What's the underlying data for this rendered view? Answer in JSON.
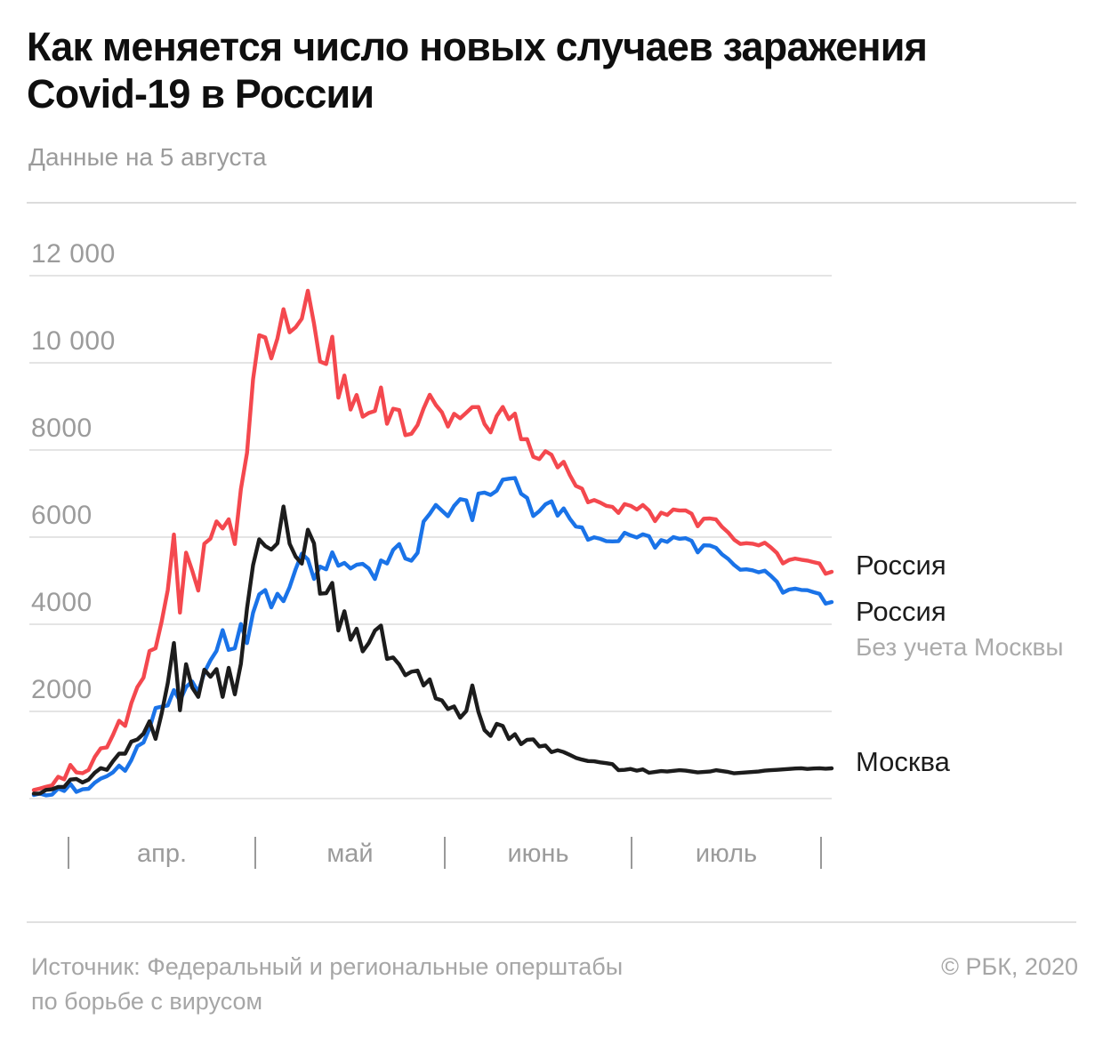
{
  "header": {
    "title_line1": "Как меняется число новых случаев заражения",
    "title_line2": "Covid-19 в России",
    "subtitle": "Данные на 5 августа"
  },
  "legend": {
    "russia": "Россия",
    "russia_ex_line1": "Россия",
    "russia_ex_line2": "Без учета Москвы",
    "moscow": "Москва"
  },
  "footer": {
    "source_line1": "Источник: Федеральный и региональные оперштабы",
    "source_line2": "по борьбе с вирусом",
    "copyright": "© РБК, 2020"
  },
  "colors": {
    "russia": "#F4484E",
    "russia_ex_moscow": "#1A73E8",
    "moscow": "#1C1C1C",
    "grid": "#DBDBDB",
    "axis_text": "#9B9B9B",
    "tick": "#999999",
    "title": "#0F0F0F",
    "subtitle_text": "#9B9B9B",
    "footer_text": "#A6A6A6",
    "divider": "#DCDCDC",
    "legend_sub": "#ABABAB"
  },
  "chart_data": {
    "type": "line",
    "title": "Как меняется число новых случаев заражения Covid-19 в России",
    "subtitle": "Данные на 5 августа",
    "xlabel": "",
    "ylabel": "",
    "ylim": [
      0,
      12000
    ],
    "grid": "horizontal",
    "legend_position": "right",
    "x_unit": "day",
    "x_tick_labels": [
      "апр.",
      "май",
      "июнь",
      "июль"
    ],
    "y_ticks": [
      {
        "value": 12000,
        "label": "12 000"
      },
      {
        "value": 10000,
        "label": "10 000"
      },
      {
        "value": 8000,
        "label": "8000"
      },
      {
        "value": 6000,
        "label": "6000"
      },
      {
        "value": 4000,
        "label": "4000"
      },
      {
        "value": 2000,
        "label": "2000"
      },
      {
        "value": 0,
        "label": ""
      }
    ],
    "series": [
      {
        "name": "Россия",
        "color_key": "russia",
        "values": [
          196,
          228,
          270,
          302,
          500,
          440,
          771,
          601,
          582,
          658,
          954,
          1154,
          1175,
          1459,
          1786,
          1667,
          2186,
          2558,
          2774,
          3388,
          3448,
          4070,
          4785,
          6060,
          4268,
          5642,
          5236,
          4774,
          5849,
          5966,
          6361,
          6198,
          6411,
          5841,
          7099,
          7933,
          9623,
          10633,
          10581,
          10102,
          10559,
          11231,
          10699,
          10817,
          11012,
          11656,
          10899,
          10028,
          9974,
          10598,
          9200,
          9709,
          8926,
          9263,
          8764,
          8849,
          8894,
          9434,
          8599,
          8946,
          8915,
          8338,
          8371,
          8572,
          8952,
          9268,
          9035,
          8863,
          8536,
          8831,
          8726,
          8855,
          8984,
          8985,
          8595,
          8404,
          8779,
          8987,
          8706,
          8835,
          8246,
          8248,
          7843,
          7790,
          7972,
          7889,
          7600,
          7728,
          7425,
          7176,
          7113,
          6800,
          6852,
          6791,
          6719,
          6693,
          6556,
          6760,
          6718,
          6632,
          6736,
          6611,
          6368,
          6562,
          6509,
          6635,
          6611,
          6615,
          6537,
          6248,
          6422,
          6428,
          6406,
          6234,
          6109,
          5940,
          5842,
          5862,
          5848,
          5811,
          5871,
          5765,
          5635,
          5395,
          5475,
          5509,
          5482,
          5462,
          5427,
          5394,
          5159,
          5204
        ]
      },
      {
        "name": "Россия. Без учета Москвы",
        "color_key": "russia_ex_moscow",
        "values": [
          82,
          114,
          73,
          90,
          233,
          173,
          337,
          153,
          212,
          224,
          363,
          457,
          515,
          602,
          756,
          636,
          880,
          1203,
          1285,
          1614,
          2078,
          2111,
          2136,
          2490,
          2242,
          2559,
          2688,
          2442,
          2892,
          3172,
          3390,
          3865,
          3412,
          3449,
          4006,
          3567,
          4265,
          4685,
          4786,
          4388,
          4701,
          4528,
          4853,
          5266,
          5620,
          5487,
          5041,
          5325,
          5262,
          5650,
          5343,
          5408,
          5282,
          5365,
          5386,
          5279,
          5039,
          5465,
          5394,
          5708,
          5840,
          5508,
          5460,
          5636,
          6357,
          6533,
          6738,
          6609,
          6480,
          6716,
          6871,
          6845,
          6389,
          7000,
          7023,
          6968,
          7065,
          7319,
          7341,
          7358,
          6996,
          6900,
          6484,
          6595,
          6754,
          6823,
          6491,
          6660,
          6422,
          6242,
          6220,
          5938,
          5996,
          5961,
          5907,
          5903,
          5906,
          6100,
          6038,
          5992,
          6066,
          6020,
          5758,
          5932,
          5889,
          5999,
          5961,
          5975,
          5917,
          5648,
          5812,
          5808,
          5756,
          5604,
          5499,
          5360,
          5252,
          5262,
          5238,
          5191,
          5231,
          5115,
          4975,
          4725,
          4795,
          4819,
          4787,
          4782,
          4737,
          4699,
          4474,
          4511
        ]
      },
      {
        "name": "Москва",
        "color_key": "moscow",
        "values": [
          114,
          114,
          197,
          212,
          267,
          267,
          434,
          448,
          370,
          434,
          591,
          697,
          660,
          857,
          1030,
          1031,
          1306,
          1355,
          1489,
          1774,
          1370,
          1959,
          2649,
          3570,
          2026,
          3083,
          2548,
          2332,
          2957,
          2794,
          2971,
          2333,
          2999,
          2392,
          3093,
          4366,
          5358,
          5948,
          5795,
          5714,
          5858,
          6703,
          5846,
          5551,
          5392,
          6169,
          5858,
          4703,
          4712,
          4948,
          3857,
          4301,
          3644,
          3898,
          3378,
          3570,
          3855,
          3969,
          3205,
          3238,
          3075,
          2830,
          2911,
          2936,
          2595,
          2735,
          2297,
          2254,
          2056,
          2115,
          1855,
          2010,
          2595,
          1985,
          1572,
          1436,
          1714,
          1668,
          1365,
          1477,
          1250,
          1348,
          1359,
          1195,
          1218,
          1066,
          1109,
          1068,
          1003,
          934,
          893,
          862,
          856,
          830,
          812,
          790,
          650,
          660,
          680,
          640,
          670,
          591,
          610,
          630,
          620,
          636,
          650,
          640,
          620,
          600,
          610,
          620,
          650,
          630,
          610,
          580,
          590,
          600,
          610,
          620,
          640,
          650,
          660,
          670,
          680,
          690,
          695,
          680,
          690,
          695,
          685,
          693
        ]
      }
    ]
  }
}
